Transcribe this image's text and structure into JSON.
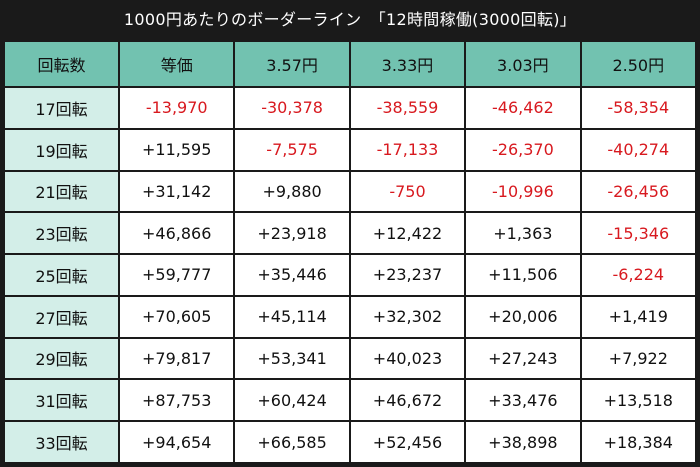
{
  "title": "1000円あたりのボーダーライン　「12時間稼働(3000回転)」",
  "colors": {
    "header_bg": "#72c2b0",
    "row_header_bg": "#d3eee8",
    "negative": "#d8191f",
    "border": "#1a1a1a"
  },
  "headers": [
    "回転数",
    "等価",
    "3.57円",
    "3.33円",
    "3.03円",
    "2.50円"
  ],
  "rows": [
    [
      "17回転",
      "-13,970",
      "-30,378",
      "-38,559",
      "-46,462",
      "-58,354"
    ],
    [
      "19回転",
      "+11,595",
      "-7,575",
      "-17,133",
      "-26,370",
      "-40,274"
    ],
    [
      "21回転",
      "+31,142",
      "+9,880",
      "-750",
      "-10,996",
      "-26,456"
    ],
    [
      "23回転",
      "+46,866",
      "+23,918",
      "+12,422",
      "+1,363",
      "-15,346"
    ],
    [
      "25回転",
      "+59,777",
      "+35,446",
      "+23,237",
      "+11,506",
      "-6,224"
    ],
    [
      "27回転",
      "+70,605",
      "+45,114",
      "+32,302",
      "+20,006",
      "+1,419"
    ],
    [
      "29回転",
      "+79,817",
      "+53,341",
      "+40,023",
      "+27,243",
      "+7,922"
    ],
    [
      "31回転",
      "+87,753",
      "+60,424",
      "+46,672",
      "+33,476",
      "+13,518"
    ],
    [
      "33回転",
      "+94,654",
      "+66,585",
      "+52,456",
      "+38,898",
      "+18,384"
    ]
  ]
}
